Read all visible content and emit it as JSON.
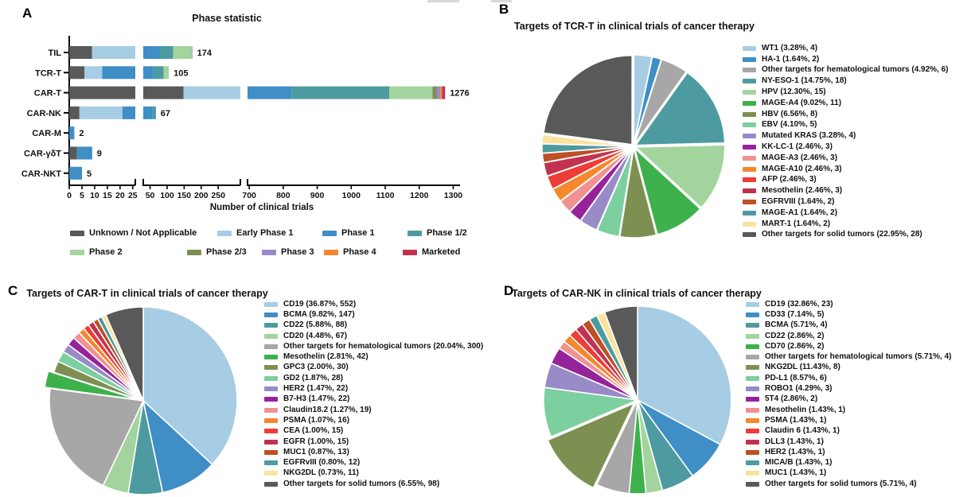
{
  "chart_data": [
    {
      "type": "bar",
      "panel": "A",
      "title": "Phase statistic",
      "xlabel": "Number of clinical trials",
      "orientation": "horizontal-stacked",
      "axis_note": "broken x-axis with three segments",
      "categories": [
        "TIL",
        "TCR-T",
        "CAR-T",
        "CAR-NK",
        "CAR-M",
        "CAR-γδT",
        "CAR-NKT"
      ],
      "totals": [
        174,
        105,
        1276,
        67,
        2,
        9,
        5
      ],
      "axis_segments": [
        {
          "ticks": [
            0,
            5,
            10,
            15,
            20,
            25
          ]
        },
        {
          "ticks": [
            50,
            100,
            150,
            200,
            250
          ]
        },
        {
          "ticks": [
            700,
            800,
            900,
            1000,
            1100,
            1200,
            1300
          ]
        }
      ],
      "note": "per-phase segment values estimated from bar lengths; totals are labeled in figure",
      "series": [
        {
          "name": "Unknown / Not Applicable",
          "color": "#595959",
          "values": [
            9,
            6,
            148,
            4,
            0,
            3,
            0
          ]
        },
        {
          "name": "Early Phase 1",
          "color": "#a6cde4",
          "values": [
            21,
            7,
            260,
            17,
            0,
            0,
            0
          ]
        },
        {
          "name": "Phase 1",
          "color": "#3f8ec6",
          "values": [
            48,
            46,
            416,
            36,
            2,
            6,
            5
          ]
        },
        {
          "name": "Phase 1/2",
          "color": "#4d9ba1",
          "values": [
            40,
            31,
            288,
            10,
            0,
            0,
            0
          ]
        },
        {
          "name": "Phase 2",
          "color": "#a4d49d",
          "values": [
            54,
            15,
            127,
            0,
            0,
            0,
            0
          ]
        },
        {
          "name": "Phase 2/3",
          "color": "#7d9051",
          "values": [
            0,
            0,
            12,
            0,
            0,
            0,
            0
          ]
        },
        {
          "name": "Phase 3",
          "color": "#988bc7",
          "values": [
            2,
            0,
            11,
            0,
            0,
            0,
            0
          ]
        },
        {
          "name": "Phase 4",
          "color": "#f6872d",
          "values": [
            0,
            0,
            5,
            0,
            0,
            0,
            0
          ]
        },
        {
          "name": "Marketed",
          "color": "#c23250",
          "values": [
            0,
            0,
            9,
            0,
            0,
            0,
            0
          ]
        }
      ]
    },
    {
      "type": "pie",
      "panel": "B",
      "title": "Targets of TCR-T in clinical trials of cancer therapy",
      "slices": [
        {
          "label": "WT1",
          "pct": 3.28,
          "count": 4,
          "color": "#a6cde4"
        },
        {
          "label": "HA-1",
          "pct": 1.64,
          "count": 2,
          "color": "#3f8ec6"
        },
        {
          "label": "Other targets for hematological tumors",
          "pct": 4.92,
          "count": 6,
          "color": "#a7a7a7"
        },
        {
          "label": "NY-ESO-1",
          "pct": 14.75,
          "count": 18,
          "color": "#4d9ba1"
        },
        {
          "label": "HPV",
          "pct": 12.3,
          "count": 15,
          "color": "#a4d49d"
        },
        {
          "label": "MAGE-A4",
          "pct": 9.02,
          "count": 11,
          "color": "#3db14c"
        },
        {
          "label": "HBV",
          "pct": 6.56,
          "count": 8,
          "color": "#7d9051"
        },
        {
          "label": "EBV",
          "pct": 4.1,
          "count": 5,
          "color": "#7ccf9f"
        },
        {
          "label": "Mutated KRAS",
          "pct": 3.28,
          "count": 4,
          "color": "#988bc7"
        },
        {
          "label": "KK-LC-1",
          "pct": 2.46,
          "count": 3,
          "color": "#97239b"
        },
        {
          "label": "MAGE-A3",
          "pct": 2.46,
          "count": 3,
          "color": "#f29191"
        },
        {
          "label": "MAGE-A10",
          "pct": 2.46,
          "count": 3,
          "color": "#f6872d"
        },
        {
          "label": "AFP",
          "pct": 2.46,
          "count": 3,
          "color": "#ee3d36"
        },
        {
          "label": "Mesothelin",
          "pct": 2.46,
          "count": 3,
          "color": "#c23250"
        },
        {
          "label": "EGFRVIII",
          "pct": 1.64,
          "count": 2,
          "color": "#bd5025"
        },
        {
          "label": "MAGE-A1",
          "pct": 1.64,
          "count": 2,
          "color": "#4d9ba1"
        },
        {
          "label": "MART-1",
          "pct": 1.64,
          "count": 2,
          "color": "#fbe39e"
        },
        {
          "label": "Other targets for solid tumors",
          "pct": 22.95,
          "count": 28,
          "color": "#595959"
        }
      ]
    },
    {
      "type": "pie",
      "panel": "C",
      "title": "Targets of CAR-T in clinical trials of cancer therapy",
      "slices": [
        {
          "label": "CD19",
          "pct": 36.87,
          "count": 552,
          "color": "#a6cde4"
        },
        {
          "label": "BCMA",
          "pct": 9.82,
          "count": 147,
          "color": "#3f8ec6"
        },
        {
          "label": "CD22",
          "pct": 5.88,
          "count": 88,
          "color": "#4d9ba1"
        },
        {
          "label": "CD20",
          "pct": 4.48,
          "count": 67,
          "color": "#a4d49d"
        },
        {
          "label": "Other targets for hematological tumors",
          "pct": 20.04,
          "count": 300,
          "color": "#a7a7a7"
        },
        {
          "label": "Mesothelin",
          "pct": 2.81,
          "count": 42,
          "color": "#3db14c"
        },
        {
          "label": "GPC3",
          "pct": 2.0,
          "count": 30,
          "color": "#7d9051"
        },
        {
          "label": "GD2",
          "pct": 1.87,
          "count": 28,
          "color": "#7ccf9f"
        },
        {
          "label": "HER2",
          "pct": 1.47,
          "count": 22,
          "color": "#988bc7"
        },
        {
          "label": "B7-H3",
          "pct": 1.47,
          "count": 22,
          "color": "#97239b"
        },
        {
          "label": "Claudin18.2",
          "pct": 1.27,
          "count": 19,
          "color": "#f29191"
        },
        {
          "label": "PSMA",
          "pct": 1.07,
          "count": 16,
          "color": "#f6872d"
        },
        {
          "label": "CEA",
          "pct": 1.0,
          "count": 15,
          "color": "#ee3d36"
        },
        {
          "label": "EGFR",
          "pct": 1.0,
          "count": 15,
          "color": "#c23250"
        },
        {
          "label": "MUC1",
          "pct": 0.87,
          "count": 13,
          "color": "#bd5025"
        },
        {
          "label": "EGFRvIII",
          "pct": 0.8,
          "count": 12,
          "color": "#4d9ba1"
        },
        {
          "label": "NKG2DL",
          "pct": 0.73,
          "count": 11,
          "color": "#fbe39e"
        },
        {
          "label": "Other targets for solid tumors",
          "pct": 6.55,
          "count": 98,
          "color": "#595959"
        }
      ]
    },
    {
      "type": "pie",
      "panel": "D",
      "title": "Targets of CAR-NK in clinical trials of cancer therapy",
      "slices": [
        {
          "label": "CD19",
          "pct": 32.86,
          "count": 23,
          "color": "#a6cde4"
        },
        {
          "label": "CD33",
          "pct": 7.14,
          "count": 5,
          "color": "#3f8ec6"
        },
        {
          "label": "BCMA",
          "pct": 5.71,
          "count": 4,
          "color": "#4d9ba1"
        },
        {
          "label": "CD22",
          "pct": 2.86,
          "count": 2,
          "color": "#a4d49d"
        },
        {
          "label": "CD70",
          "pct": 2.86,
          "count": 2,
          "color": "#3db14c"
        },
        {
          "label": "Other targets for hematological tumors",
          "pct": 5.71,
          "count": 4,
          "color": "#a7a7a7"
        },
        {
          "label": "NKG2DL",
          "pct": 11.43,
          "count": 8,
          "color": "#7d9051"
        },
        {
          "label": "PD-L1",
          "pct": 8.57,
          "count": 6,
          "color": "#7ccf9f"
        },
        {
          "label": "ROBO1",
          "pct": 4.29,
          "count": 3,
          "color": "#988bc7"
        },
        {
          "label": "5T4",
          "pct": 2.86,
          "count": 2,
          "color": "#97239b"
        },
        {
          "label": "Mesothelin",
          "pct": 1.43,
          "count": 1,
          "color": "#f29191"
        },
        {
          "label": "PSMA",
          "pct": 1.43,
          "count": 1,
          "color": "#f6872d"
        },
        {
          "label": "Claudin 6",
          "pct": 1.43,
          "count": 1,
          "color": "#ee3d36"
        },
        {
          "label": "DLL3",
          "pct": 1.43,
          "count": 1,
          "color": "#c23250"
        },
        {
          "label": "HER2",
          "pct": 1.43,
          "count": 1,
          "color": "#bd5025"
        },
        {
          "label": "MICA/B",
          "pct": 1.43,
          "count": 1,
          "color": "#4d9ba1"
        },
        {
          "label": "MUC1",
          "pct": 1.43,
          "count": 1,
          "color": "#fbe39e"
        },
        {
          "label": "Other targets for solid tumors",
          "pct": 5.71,
          "count": 4,
          "color": "#595959"
        }
      ]
    }
  ]
}
